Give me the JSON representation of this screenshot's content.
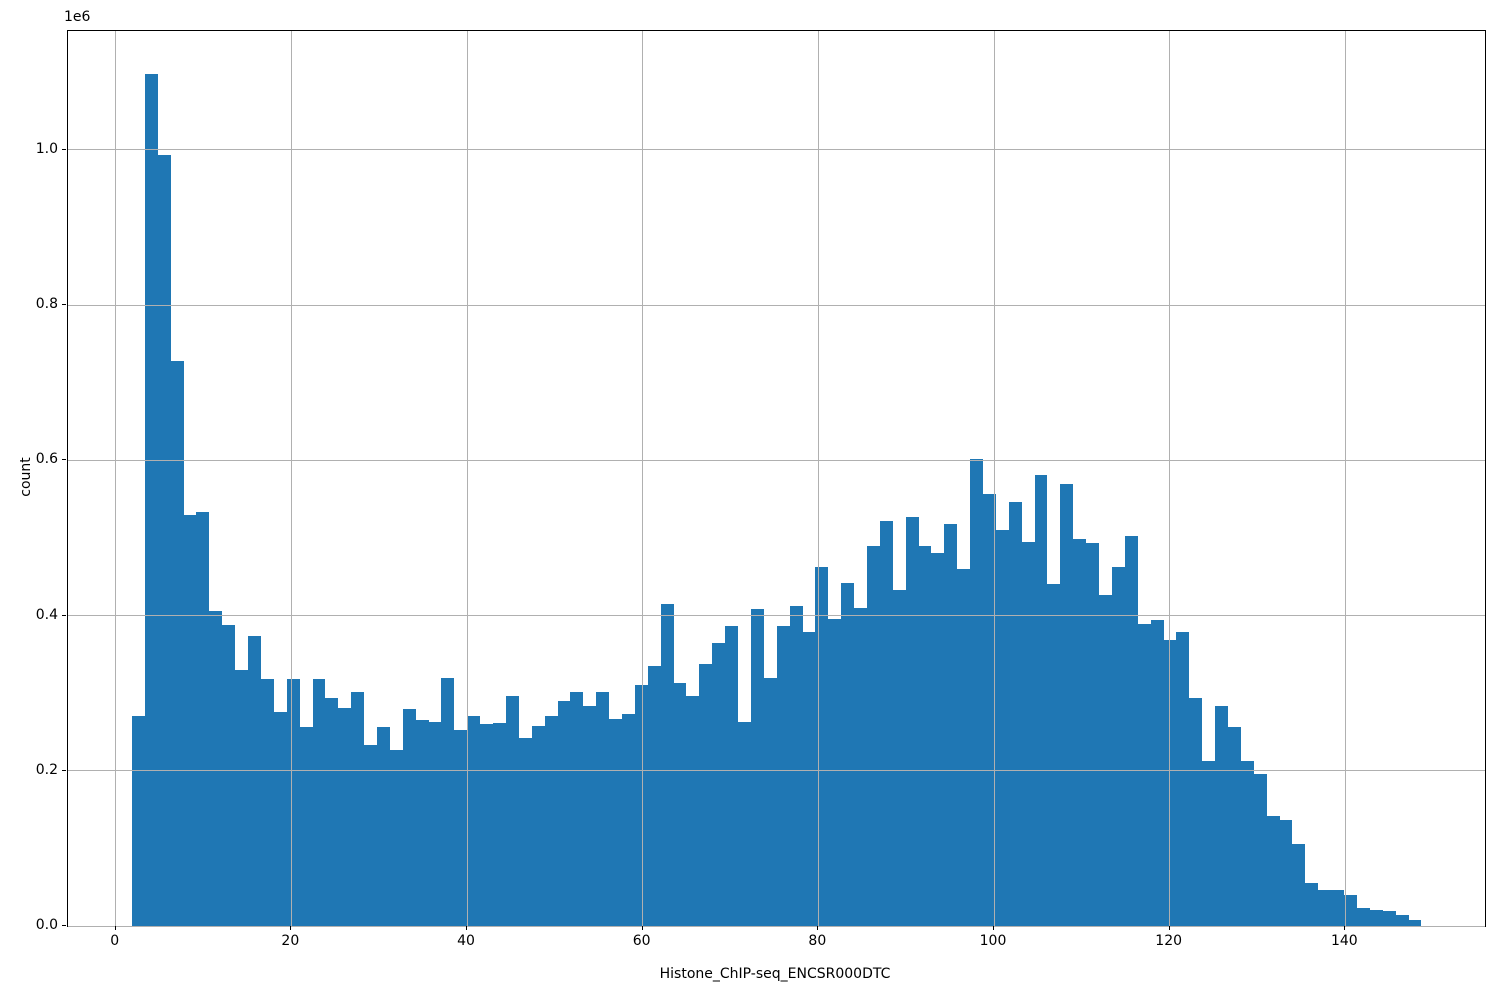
{
  "chart_data": {
    "type": "bar",
    "subtype": "histogram",
    "title": "",
    "xlabel": "Histone_ChIP-seq_ENCSR000DTC",
    "ylabel": "count",
    "y_offset_label": "1e6",
    "legend": null,
    "grid": true,
    "grid_color": "#b0b0b0",
    "bar_color": "#1f77b4",
    "background_color": "#ffffff",
    "xlim": [
      -5.43,
      155.9
    ],
    "ylim": [
      0,
      1153000
    ],
    "x_ticks": [
      0,
      20,
      40,
      60,
      80,
      100,
      120,
      140
    ],
    "y_ticks": [
      {
        "value": 0,
        "label": "0.0"
      },
      {
        "value": 200000,
        "label": "0.2"
      },
      {
        "value": 400000,
        "label": "0.4"
      },
      {
        "value": 600000,
        "label": "0.6"
      },
      {
        "value": 800000,
        "label": "0.8"
      },
      {
        "value": 1000000,
        "label": "1.0"
      }
    ],
    "bin_start": 1.86,
    "bin_width": 1.468,
    "counts": [
      270000,
      1098000,
      993000,
      728000,
      529000,
      534000,
      406000,
      388000,
      330000,
      374000,
      318000,
      276000,
      318000,
      256000,
      318000,
      294000,
      281000,
      301000,
      233000,
      256000,
      227000,
      280000,
      266000,
      263000,
      319000,
      252000,
      271000,
      260000,
      262000,
      296000,
      242000,
      258000,
      271000,
      290000,
      302000,
      283000,
      302000,
      267000,
      273000,
      310000,
      335000,
      415000,
      313000,
      296000,
      337000,
      364000,
      387000,
      263000,
      408000,
      319000,
      386000,
      412000,
      379000,
      462000,
      395000,
      442000,
      410000,
      490000,
      522000,
      433000,
      527000,
      490000,
      480000,
      518000,
      460000,
      602000,
      556000,
      510000,
      546000,
      495000,
      581000,
      441000,
      570000,
      499000,
      494000,
      426000,
      463000,
      503000,
      389000,
      394000,
      369000,
      379000,
      294000,
      212000,
      284000,
      256000,
      213000,
      196000,
      142000,
      137000,
      106000,
      55000,
      46000,
      47000,
      40000,
      23000,
      21000,
      19000,
      14000,
      8000
    ]
  }
}
